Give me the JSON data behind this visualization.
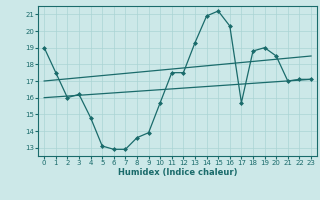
{
  "xlabel": "Humidex (Indice chaleur)",
  "x_ticks": [
    0,
    1,
    2,
    3,
    4,
    5,
    6,
    7,
    8,
    9,
    10,
    11,
    12,
    13,
    14,
    15,
    16,
    17,
    18,
    19,
    20,
    21,
    22,
    23
  ],
  "ylim": [
    12.5,
    21.5
  ],
  "xlim": [
    -0.5,
    23.5
  ],
  "yticks": [
    13,
    14,
    15,
    16,
    17,
    18,
    19,
    20,
    21
  ],
  "bg_color": "#cce8e8",
  "line_color": "#1a6b6b",
  "grid_color": "#aad4d4",
  "line1_x": [
    0,
    1,
    2,
    3,
    4,
    5,
    6,
    7,
    8,
    9,
    10,
    11,
    12,
    13,
    14,
    15,
    16,
    17,
    18,
    19,
    20,
    21,
    22,
    23
  ],
  "line1_y": [
    19.0,
    17.5,
    16.0,
    16.2,
    14.8,
    13.1,
    12.9,
    12.9,
    13.6,
    13.9,
    15.7,
    17.5,
    17.5,
    19.3,
    20.9,
    21.2,
    20.3,
    15.7,
    18.8,
    19.0,
    18.5,
    17.0,
    17.1,
    17.1
  ],
  "line2_x": [
    0,
    23
  ],
  "line2_y": [
    17.0,
    18.5
  ],
  "line3_x": [
    0,
    23
  ],
  "line3_y": [
    16.0,
    17.1
  ]
}
